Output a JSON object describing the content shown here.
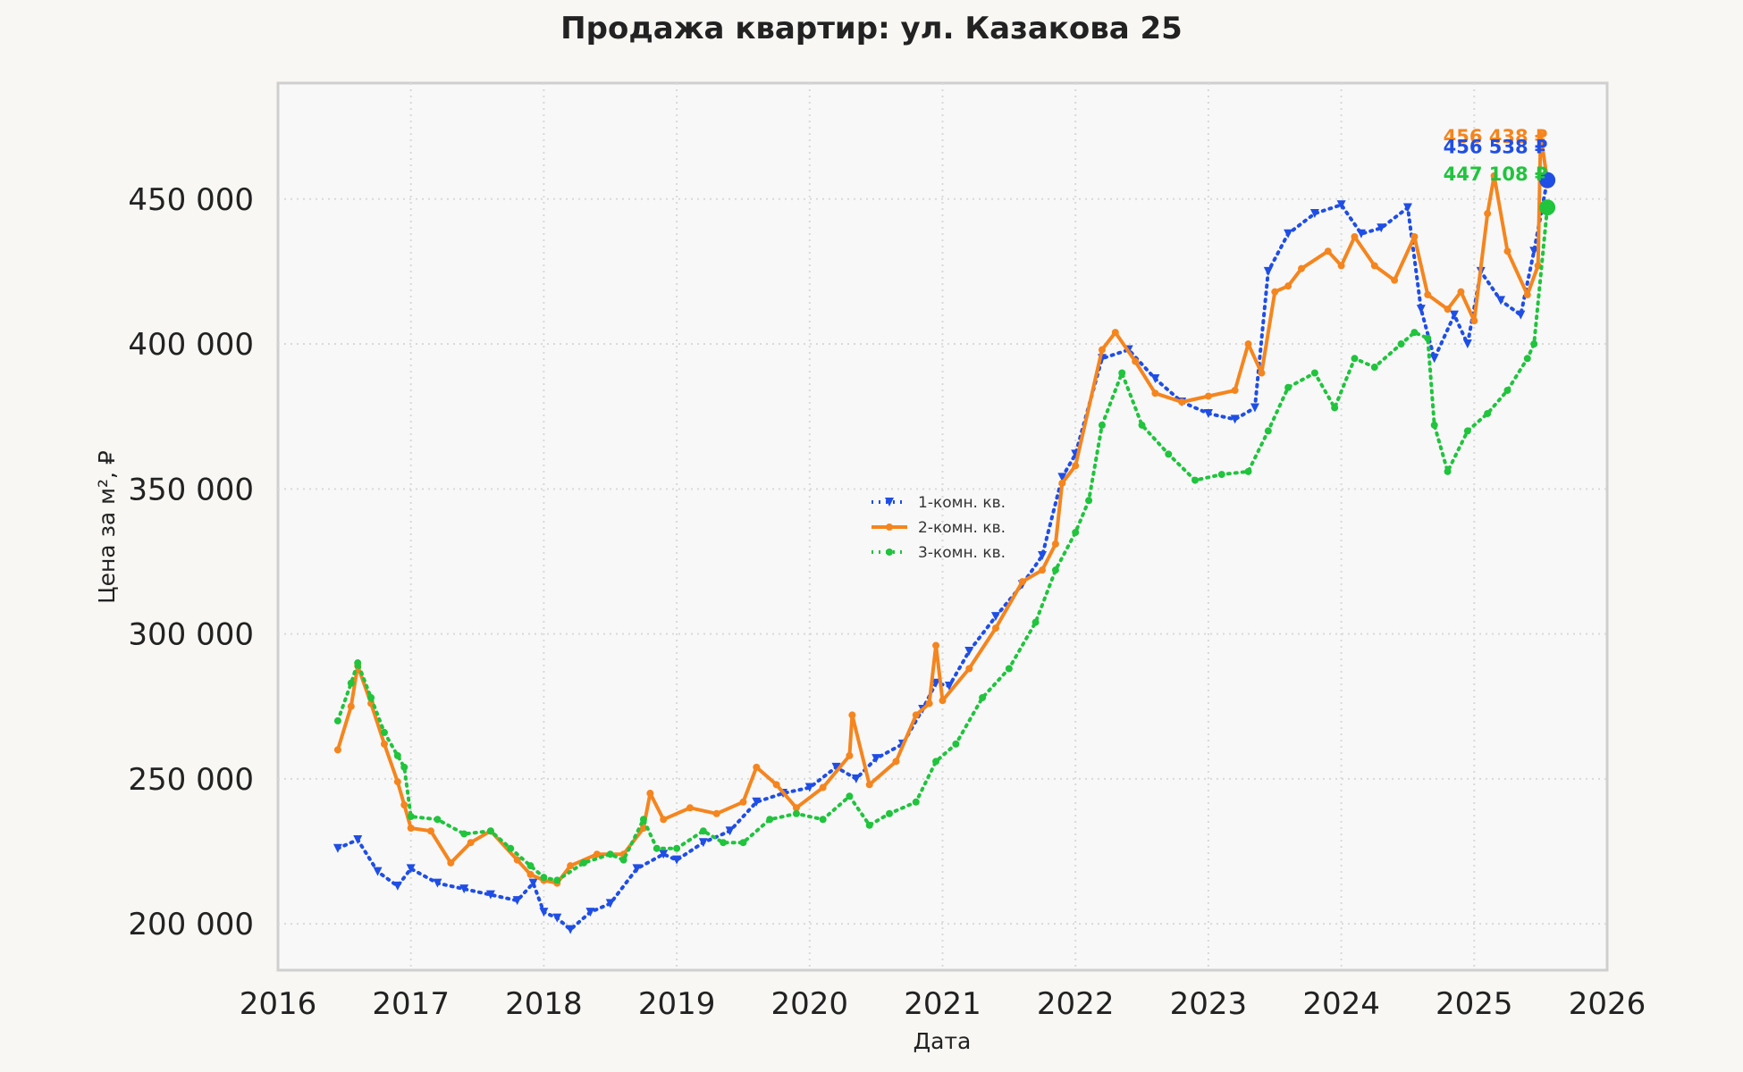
{
  "chart_data": {
    "type": "line",
    "title": "Продажа квартир: ул. Казакова 25",
    "xlabel": "Дата",
    "ylabel": "Цена за м², ₽",
    "xlim": [
      2016,
      2026
    ],
    "ylim": [
      184000,
      490000
    ],
    "x_ticks": [
      2016,
      2017,
      2018,
      2019,
      2020,
      2021,
      2022,
      2023,
      2024,
      2025,
      2026
    ],
    "y_ticks": [
      200000,
      250000,
      300000,
      350000,
      400000,
      450000
    ],
    "y_tick_labels": [
      "200 000",
      "250 000",
      "300 000",
      "350 000",
      "400 000",
      "450 000"
    ],
    "grid": true,
    "legend_position": "center",
    "series": [
      {
        "name": "1-комн. кв.",
        "color": "#1f4ee6",
        "style": "dotted",
        "marker": "triangle-down",
        "x": [
          2016.45,
          2016.6,
          2016.75,
          2016.9,
          2017.0,
          2017.2,
          2017.4,
          2017.6,
          2017.8,
          2017.92,
          2018.0,
          2018.1,
          2018.2,
          2018.35,
          2018.5,
          2018.7,
          2018.9,
          2019.0,
          2019.2,
          2019.4,
          2019.6,
          2019.8,
          2020.0,
          2020.2,
          2020.35,
          2020.5,
          2020.7,
          2020.85,
          2020.95,
          2021.05,
          2021.2,
          2021.4,
          2021.6,
          2021.75,
          2021.9,
          2022.0,
          2022.2,
          2022.4,
          2022.6,
          2022.8,
          2023.0,
          2023.2,
          2023.35,
          2023.45,
          2023.6,
          2023.8,
          2024.0,
          2024.15,
          2024.3,
          2024.5,
          2024.6,
          2024.7,
          2024.85,
          2024.95,
          2025.05,
          2025.2,
          2025.35,
          2025.45,
          2025.55
        ],
        "y": [
          226000,
          229000,
          218000,
          213000,
          219000,
          214000,
          212000,
          210000,
          208000,
          214000,
          204000,
          202000,
          198000,
          204000,
          207000,
          219000,
          224000,
          222000,
          228000,
          232000,
          242000,
          245000,
          247000,
          254000,
          250000,
          257000,
          262000,
          274000,
          283000,
          282000,
          294000,
          306000,
          317000,
          327000,
          354000,
          362000,
          395000,
          398000,
          388000,
          380000,
          376000,
          374000,
          378000,
          425000,
          438000,
          445000,
          448000,
          438000,
          440000,
          447000,
          412000,
          395000,
          410000,
          400000,
          425000,
          415000,
          410000,
          432000,
          456538
        ]
      },
      {
        "name": "2-комн. кв.",
        "color": "#f5851e",
        "style": "solid",
        "marker": "circle",
        "x": [
          2016.45,
          2016.55,
          2016.6,
          2016.7,
          2016.8,
          2016.9,
          2016.95,
          2017.0,
          2017.15,
          2017.3,
          2017.45,
          2017.6,
          2017.8,
          2017.9,
          2018.0,
          2018.1,
          2018.2,
          2018.4,
          2018.6,
          2018.75,
          2018.8,
          2018.9,
          2019.1,
          2019.3,
          2019.5,
          2019.6,
          2019.75,
          2019.9,
          2020.1,
          2020.3,
          2020.32,
          2020.45,
          2020.65,
          2020.8,
          2020.9,
          2020.95,
          2021.0,
          2021.2,
          2021.4,
          2021.6,
          2021.75,
          2021.85,
          2021.9,
          2022.0,
          2022.2,
          2022.3,
          2022.45,
          2022.6,
          2022.8,
          2023.0,
          2023.2,
          2023.3,
          2023.4,
          2023.5,
          2023.6,
          2023.7,
          2023.9,
          2024.0,
          2024.1,
          2024.25,
          2024.4,
          2024.55,
          2024.65,
          2024.8,
          2024.9,
          2025.0,
          2025.1,
          2025.15,
          2025.25,
          2025.4,
          2025.48,
          2025.5,
          2025.55
        ],
        "y": [
          260000,
          275000,
          289000,
          276000,
          262000,
          249000,
          241000,
          233000,
          232000,
          221000,
          228000,
          232000,
          222000,
          217000,
          215000,
          214000,
          220000,
          224000,
          224000,
          233000,
          245000,
          236000,
          240000,
          238000,
          242000,
          254000,
          248000,
          240000,
          247000,
          258000,
          272000,
          248000,
          256000,
          272000,
          276000,
          296000,
          277000,
          288000,
          302000,
          318000,
          322000,
          331000,
          352000,
          358000,
          398000,
          404000,
          394000,
          383000,
          380000,
          382000,
          384000,
          400000,
          390000,
          418000,
          420000,
          426000,
          432000,
          427000,
          437000,
          427000,
          422000,
          437000,
          417000,
          412000,
          418000,
          408000,
          445000,
          458000,
          432000,
          417000,
          427000,
          472000,
          456438
        ]
      },
      {
        "name": "3-комн. кв.",
        "color": "#20c43d",
        "style": "dotted",
        "marker": "circle",
        "x": [
          2016.45,
          2016.55,
          2016.6,
          2016.7,
          2016.8,
          2016.9,
          2016.95,
          2017.0,
          2017.2,
          2017.4,
          2017.6,
          2017.75,
          2017.9,
          2018.0,
          2018.1,
          2018.3,
          2018.5,
          2018.6,
          2018.75,
          2018.85,
          2019.0,
          2019.2,
          2019.35,
          2019.5,
          2019.7,
          2019.9,
          2020.1,
          2020.3,
          2020.45,
          2020.6,
          2020.8,
          2020.95,
          2021.1,
          2021.3,
          2021.5,
          2021.7,
          2021.85,
          2022.0,
          2022.1,
          2022.2,
          2022.35,
          2022.5,
          2022.7,
          2022.9,
          2023.1,
          2023.3,
          2023.45,
          2023.6,
          2023.8,
          2023.95,
          2024.1,
          2024.25,
          2024.45,
          2024.55,
          2024.65,
          2024.7,
          2024.8,
          2024.95,
          2025.1,
          2025.25,
          2025.4,
          2025.45,
          2025.55
        ],
        "y": [
          270000,
          283000,
          290000,
          278000,
          266000,
          258000,
          254000,
          237000,
          236000,
          231000,
          232000,
          226000,
          220000,
          216000,
          215000,
          221000,
          224000,
          222000,
          236000,
          226000,
          226000,
          232000,
          228000,
          228000,
          236000,
          238000,
          236000,
          244000,
          234000,
          238000,
          242000,
          256000,
          262000,
          278000,
          288000,
          304000,
          322000,
          335000,
          346000,
          372000,
          390000,
          372000,
          362000,
          353000,
          355000,
          356000,
          370000,
          385000,
          390000,
          378000,
          395000,
          392000,
          400000,
          404000,
          402000,
          372000,
          356000,
          370000,
          376000,
          384000,
          395000,
          400000,
          447108
        ]
      }
    ],
    "end_points": [
      {
        "series": "2-комн. кв.",
        "label": "456 438 ₽",
        "x": 2025.55,
        "y": 456438
      },
      {
        "series": "1-комн. кв.",
        "label": "456 538 ₽",
        "x": 2025.55,
        "y": 456538
      },
      {
        "series": "3-комн. кв.",
        "label": "447 108 ₽",
        "x": 2025.55,
        "y": 447108
      }
    ]
  }
}
